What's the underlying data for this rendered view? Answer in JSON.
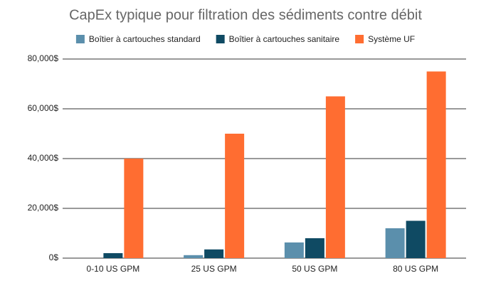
{
  "chart_data": {
    "type": "bar",
    "title": "CapEx typique pour filtration des sédiments contre débit",
    "categories": [
      "0-10 US GPM",
      "25 US GPM",
      "50 US GPM",
      "80 US GPM"
    ],
    "series": [
      {
        "name": "Boîtier à cartouches standard",
        "color": "#5b8fac",
        "values": [
          0,
          1200,
          6300,
          12000
        ]
      },
      {
        "name": "Boîtier à cartouches sanitaire",
        "color": "#0f4a63",
        "values": [
          2000,
          3500,
          8000,
          15000
        ]
      },
      {
        "name": "Système UF",
        "color": "#ff6d31",
        "values": [
          40000,
          50000,
          65000,
          75000
        ]
      }
    ],
    "ylim": [
      0,
      80000
    ],
    "yticks": [
      {
        "value": 0,
        "label": "0$"
      },
      {
        "value": 20000,
        "label": "20,000$"
      },
      {
        "value": 40000,
        "label": "40,000$"
      },
      {
        "value": 60000,
        "label": "60,000$"
      },
      {
        "value": 80000,
        "label": "80,000$"
      }
    ],
    "grid": true,
    "legend": "top"
  }
}
